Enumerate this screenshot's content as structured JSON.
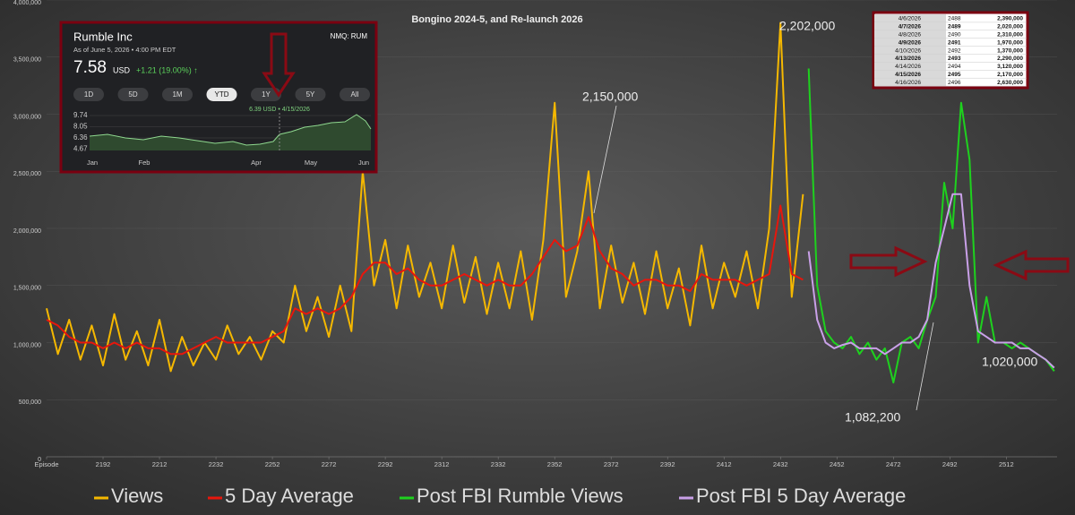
{
  "chart_data": {
    "type": "line",
    "title": "Bongino 2024-5, and Re-launch 2026",
    "xlim": [
      2172,
      2530
    ],
    "xticks": [
      {
        "value": 2172,
        "label": "Episode"
      },
      2192,
      2212,
      2232,
      2252,
      2272,
      2292,
      2312,
      2332,
      2352,
      2372,
      2392,
      2412,
      2432,
      2452,
      2472,
      2492,
      2512
    ],
    "ylim": [
      0,
      4000000
    ],
    "yticks": [
      0,
      {
        "value": 500000,
        "label": "500,000"
      },
      {
        "value": 1000000,
        "label": "1,000,000"
      },
      {
        "value": 1500000,
        "label": "1,500,000"
      },
      {
        "value": 2000000,
        "label": "2,000,000"
      },
      {
        "value": 2500000,
        "label": "2,500,000"
      },
      {
        "value": 3000000,
        "label": "3,000,000"
      },
      {
        "value": 3500000,
        "label": "3,500,000"
      },
      {
        "value": 4000000,
        "label": "4,000,000"
      }
    ],
    "grid": true,
    "legend": "bottom",
    "series": [
      {
        "name": "Views",
        "color": "#f5b800",
        "x": [
          2172,
          2176,
          2180,
          2184,
          2188,
          2192,
          2196,
          2200,
          2204,
          2208,
          2212,
          2216,
          2220,
          2224,
          2228,
          2232,
          2236,
          2240,
          2244,
          2248,
          2252,
          2256,
          2260,
          2264,
          2268,
          2272,
          2276,
          2280,
          2284,
          2288,
          2292,
          2296,
          2300,
          2304,
          2308,
          2312,
          2316,
          2320,
          2324,
          2328,
          2332,
          2336,
          2340,
          2344,
          2348,
          2352,
          2356,
          2360,
          2364,
          2368,
          2372,
          2376,
          2380,
          2384,
          2388,
          2392,
          2396,
          2400,
          2404,
          2408,
          2412,
          2416,
          2420,
          2424,
          2428,
          2432,
          2436,
          2440
        ],
        "values": [
          1300000,
          900000,
          1200000,
          850000,
          1150000,
          800000,
          1250000,
          850000,
          1100000,
          800000,
          1200000,
          750000,
          1050000,
          800000,
          1000000,
          850000,
          1150000,
          900000,
          1050000,
          850000,
          1100000,
          1000000,
          1500000,
          1100000,
          1400000,
          1050000,
          1500000,
          1100000,
          2500000,
          1500000,
          1900000,
          1300000,
          1850000,
          1400000,
          1700000,
          1300000,
          1850000,
          1350000,
          1750000,
          1250000,
          1700000,
          1300000,
          1800000,
          1200000,
          1900000,
          3100000,
          1400000,
          1800000,
          2500000,
          1300000,
          1850000,
          1350000,
          1700000,
          1250000,
          1800000,
          1300000,
          1650000,
          1150000,
          1850000,
          1300000,
          1700000,
          1400000,
          1800000,
          1300000,
          2000000,
          3800000,
          1400000,
          2300000
        ]
      },
      {
        "name": "5 Day Average",
        "color": "#e8160c",
        "x": [
          2172,
          2176,
          2180,
          2184,
          2188,
          2192,
          2196,
          2200,
          2204,
          2208,
          2212,
          2216,
          2220,
          2224,
          2228,
          2232,
          2236,
          2240,
          2244,
          2248,
          2252,
          2256,
          2260,
          2264,
          2268,
          2272,
          2276,
          2280,
          2284,
          2288,
          2292,
          2296,
          2300,
          2304,
          2308,
          2312,
          2316,
          2320,
          2324,
          2328,
          2332,
          2336,
          2340,
          2344,
          2348,
          2352,
          2356,
          2360,
          2364,
          2368,
          2372,
          2376,
          2380,
          2384,
          2388,
          2392,
          2396,
          2400,
          2404,
          2408,
          2412,
          2416,
          2420,
          2424,
          2428,
          2432,
          2436,
          2440
        ],
        "values": [
          1200000,
          1150000,
          1050000,
          1000000,
          1000000,
          950000,
          1000000,
          950000,
          1000000,
          950000,
          950000,
          900000,
          900000,
          950000,
          1000000,
          1050000,
          1000000,
          1000000,
          1000000,
          1000000,
          1050000,
          1100000,
          1300000,
          1250000,
          1300000,
          1250000,
          1300000,
          1400000,
          1600000,
          1700000,
          1700000,
          1600000,
          1650000,
          1550000,
          1500000,
          1500000,
          1550000,
          1600000,
          1550000,
          1500000,
          1550000,
          1500000,
          1500000,
          1600000,
          1750000,
          1900000,
          1800000,
          1850000,
          2100000,
          1800000,
          1650000,
          1600000,
          1500000,
          1550000,
          1550000,
          1500000,
          1500000,
          1450000,
          1600000,
          1550000,
          1550000,
          1550000,
          1500000,
          1550000,
          1600000,
          2200000,
          1600000,
          1550000
        ]
      },
      {
        "name": "Post FBI Rumble Views",
        "color": "#1ed11e",
        "x": [
          2442,
          2445,
          2448,
          2451,
          2454,
          2457,
          2460,
          2463,
          2466,
          2469,
          2472,
          2475,
          2478,
          2481,
          2484,
          2487,
          2490,
          2493,
          2496,
          2499,
          2502,
          2505,
          2508,
          2511,
          2514,
          2517,
          2520,
          2523,
          2526,
          2529
        ],
        "values": [
          3400000,
          1500000,
          1100000,
          1000000,
          950000,
          1050000,
          900000,
          1000000,
          850000,
          950000,
          650000,
          1000000,
          1050000,
          950000,
          1200000,
          1400000,
          2400000,
          2000000,
          3100000,
          2600000,
          1000000,
          1400000,
          1000000,
          1000000,
          950000,
          1000000,
          950000,
          900000,
          850000,
          750000
        ]
      },
      {
        "name": "Post FBI 5 Day Average",
        "color": "#c9a0e8",
        "x": [
          2442,
          2445,
          2448,
          2451,
          2454,
          2457,
          2460,
          2463,
          2466,
          2469,
          2472,
          2475,
          2478,
          2481,
          2484,
          2487,
          2490,
          2493,
          2496,
          2499,
          2502,
          2505,
          2508,
          2511,
          2514,
          2517,
          2520,
          2523,
          2526,
          2529
        ],
        "values": [
          1800000,
          1200000,
          1000000,
          950000,
          980000,
          1000000,
          950000,
          950000,
          950000,
          900000,
          950000,
          1000000,
          1000000,
          1050000,
          1200000,
          1700000,
          2000000,
          2300000,
          2300000,
          1500000,
          1100000,
          1050000,
          1000000,
          1000000,
          1000000,
          950000,
          950000,
          900000,
          850000,
          780000
        ]
      }
    ],
    "annotations": [
      "2,202,000",
      "2,150,000",
      "1,082,200",
      "1,020,000"
    ],
    "stock": {
      "name": "Rumble Inc",
      "ticker": "NMQ: RUM",
      "as_of": "As of June 5, 2026 • 4:00 PM EDT",
      "price": "7.58",
      "currency": "USD",
      "change": "+1.21 (19.00%) ↑",
      "ranges": [
        "1D",
        "5D",
        "1M",
        "YTD",
        "1Y",
        "5Y",
        "All"
      ],
      "marker": "6.39 USD • 4/15/2026",
      "axis_labels": [
        "9.74",
        "8.05",
        "6.36",
        "4.67"
      ],
      "months": [
        "Jan",
        "Feb",
        "Apr",
        "May",
        "Jun"
      ]
    },
    "table": {
      "rows": [
        [
          "4/6/2026",
          "2488",
          "2,390,000"
        ],
        [
          "4/7/2026",
          "2489",
          "2,020,000"
        ],
        [
          "4/8/2026",
          "2490",
          "2,310,000"
        ],
        [
          "4/9/2026",
          "2491",
          "1,970,000"
        ],
        [
          "4/10/2026",
          "2492",
          "1,370,000"
        ],
        [
          "4/13/2026",
          "2493",
          "2,290,000"
        ],
        [
          "4/14/2026",
          "2494",
          "3,120,000"
        ],
        [
          "4/15/2026",
          "2495",
          "2,170,000"
        ],
        [
          "4/16/2026",
          "2496",
          "2,630,000"
        ]
      ]
    }
  }
}
